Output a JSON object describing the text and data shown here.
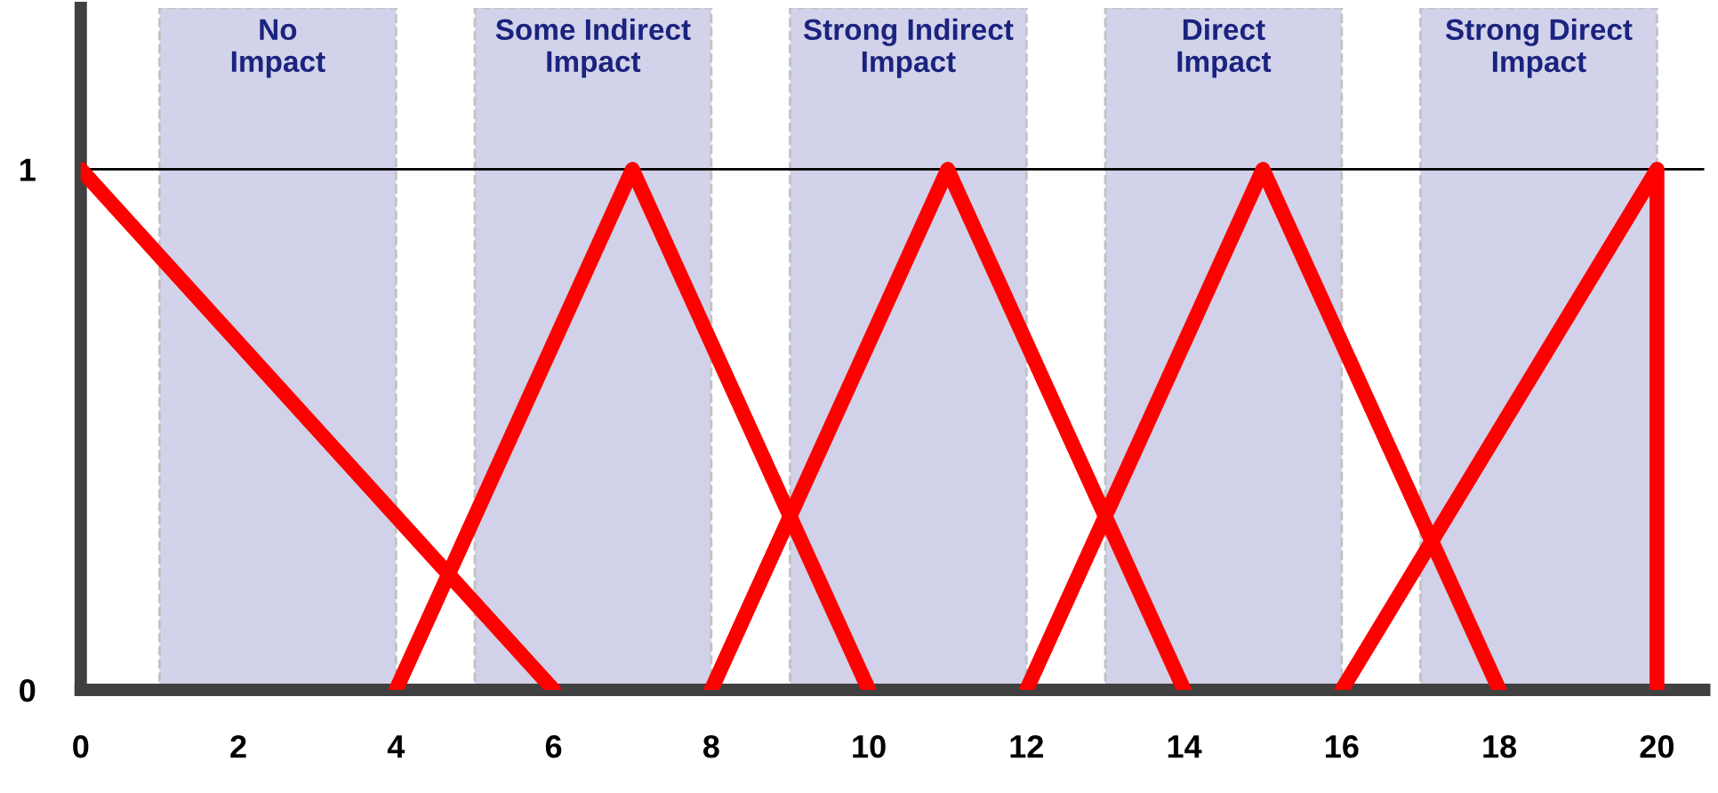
{
  "chart_data": {
    "type": "line",
    "series": [
      {
        "color": "#ff0000",
        "x": [
          0,
          6
        ],
        "values": [
          1,
          0
        ]
      },
      {
        "color": "#ff0000",
        "x": [
          4,
          7,
          10
        ],
        "values": [
          0,
          1,
          0
        ]
      },
      {
        "color": "#ff0000",
        "x": [
          8,
          11,
          14
        ],
        "values": [
          0,
          1,
          0
        ]
      },
      {
        "color": "#ff0000",
        "x": [
          12,
          15,
          18
        ],
        "values": [
          0,
          1,
          0
        ]
      },
      {
        "color": "#ff0000",
        "x": [
          16,
          20,
          20
        ],
        "values": [
          0,
          1,
          0
        ]
      }
    ],
    "xlim": [
      0,
      20.6
    ],
    "ylim": [
      0,
      1.31
    ],
    "xticks": [
      0,
      2,
      4,
      6,
      8,
      10,
      12,
      14,
      16,
      18,
      20
    ],
    "yticks": [
      0,
      1
    ],
    "ref_lines": [
      {
        "axis": "y",
        "value": 1,
        "color": "#000000"
      }
    ],
    "bands": [
      {
        "axis": "x",
        "from": 1,
        "to": 4,
        "label": "No\nImpact",
        "color": "#b4b4dc"
      },
      {
        "axis": "x",
        "from": 5,
        "to": 8,
        "label": "Some Indirect\nImpact",
        "color": "#b4b4dc"
      },
      {
        "axis": "x",
        "from": 9,
        "to": 12,
        "label": "Strong Indirect\nImpact",
        "color": "#b4b4dc"
      },
      {
        "axis": "x",
        "from": 13,
        "to": 16,
        "label": "Direct\nImpact",
        "color": "#b4b4dc"
      },
      {
        "axis": "x",
        "from": 17,
        "to": 20,
        "label": "Strong Direct\nImpact",
        "color": "#b4b4dc"
      }
    ],
    "grid": false,
    "marker": "none",
    "line_style": "solid"
  }
}
